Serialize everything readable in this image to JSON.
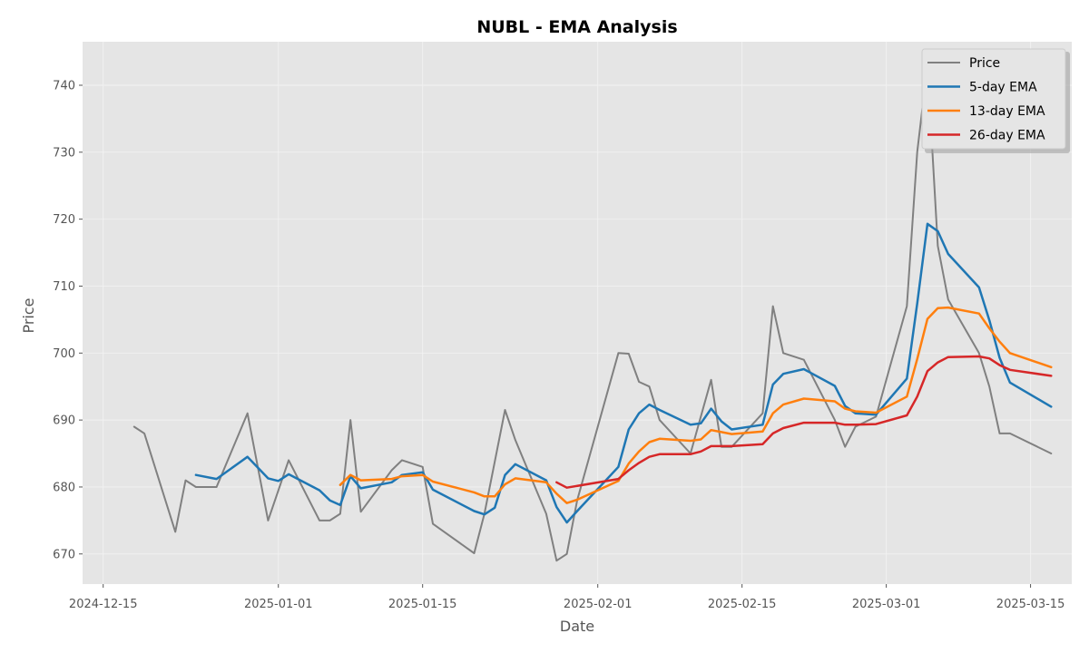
{
  "chart_data": {
    "type": "line",
    "title": "NUBL - EMA Analysis",
    "xlabel": "Date",
    "ylabel": "Price",
    "xlim": [
      "2024-12-13",
      "2025-03-19"
    ],
    "ylim": [
      665.5,
      746.5
    ],
    "x_ticks": [
      "2024-12-15",
      "2025-01-01",
      "2025-01-15",
      "2025-02-01",
      "2025-02-15",
      "2025-03-01",
      "2025-03-15"
    ],
    "y_ticks": [
      670,
      680,
      690,
      700,
      710,
      720,
      730,
      740
    ],
    "grid": true,
    "legend_position": "top-right",
    "series": [
      {
        "name": "Price",
        "color": "#808080",
        "points": [
          [
            "2024-12-18",
            689
          ],
          [
            "2024-12-19",
            688
          ],
          [
            "2024-12-22",
            673.3
          ],
          [
            "2024-12-23",
            681
          ],
          [
            "2024-12-24",
            680
          ],
          [
            "2024-12-26",
            680
          ],
          [
            "2024-12-29",
            691
          ],
          [
            "2024-12-31",
            675
          ],
          [
            "2025-01-02",
            684
          ],
          [
            "2025-01-05",
            675
          ],
          [
            "2025-01-06",
            675
          ],
          [
            "2025-01-07",
            676
          ],
          [
            "2025-01-08",
            690
          ],
          [
            "2025-01-09",
            676.3
          ],
          [
            "2025-01-12",
            682.5
          ],
          [
            "2025-01-13",
            684
          ],
          [
            "2025-01-15",
            683
          ],
          [
            "2025-01-16",
            674.5
          ],
          [
            "2025-01-20",
            670.1
          ],
          [
            "2025-01-21",
            676
          ],
          [
            "2025-01-23",
            691.5
          ],
          [
            "2025-01-24",
            687
          ],
          [
            "2025-01-27",
            676
          ],
          [
            "2025-01-28",
            669
          ],
          [
            "2025-01-29",
            670
          ],
          [
            "2025-01-30",
            678
          ],
          [
            "2025-02-03",
            700
          ],
          [
            "2025-02-04",
            699.9
          ],
          [
            "2025-02-05",
            695.7
          ],
          [
            "2025-02-06",
            695
          ],
          [
            "2025-02-07",
            690
          ],
          [
            "2025-02-10",
            685
          ],
          [
            "2025-02-12",
            696
          ],
          [
            "2025-02-13",
            686
          ],
          [
            "2025-02-14",
            686
          ],
          [
            "2025-02-17",
            691
          ],
          [
            "2025-02-18",
            707
          ],
          [
            "2025-02-19",
            700
          ],
          [
            "2025-02-21",
            699
          ],
          [
            "2025-02-24",
            690
          ],
          [
            "2025-02-25",
            686
          ],
          [
            "2025-02-26",
            689
          ],
          [
            "2025-02-28",
            690.5
          ],
          [
            "2025-03-03",
            707
          ],
          [
            "2025-03-04",
            730
          ],
          [
            "2025-03-05",
            743
          ],
          [
            "2025-03-06",
            716
          ],
          [
            "2025-03-07",
            708
          ],
          [
            "2025-03-10",
            700
          ],
          [
            "2025-03-11",
            695
          ],
          [
            "2025-03-12",
            688
          ],
          [
            "2025-03-13",
            688
          ],
          [
            "2025-03-17",
            685
          ]
        ]
      },
      {
        "name": "5-day EMA",
        "color": "#1f77b4",
        "points": [
          [
            "2024-12-24",
            681.8
          ],
          [
            "2024-12-26",
            681.2
          ],
          [
            "2024-12-29",
            684.5
          ],
          [
            "2024-12-31",
            681.3
          ],
          [
            "2025-01-01",
            680.9
          ],
          [
            "2025-01-02",
            681.9
          ],
          [
            "2025-01-05",
            679.5
          ],
          [
            "2025-01-06",
            678
          ],
          [
            "2025-01-07",
            677.3
          ],
          [
            "2025-01-08",
            681.6
          ],
          [
            "2025-01-09",
            679.8
          ],
          [
            "2025-01-12",
            680.7
          ],
          [
            "2025-01-13",
            681.8
          ],
          [
            "2025-01-15",
            682.2
          ],
          [
            "2025-01-16",
            679.6
          ],
          [
            "2025-01-20",
            676.4
          ],
          [
            "2025-01-21",
            675.9
          ],
          [
            "2025-01-22",
            676.9
          ],
          [
            "2025-01-23",
            681.8
          ],
          [
            "2025-01-24",
            683.4
          ],
          [
            "2025-01-27",
            681
          ],
          [
            "2025-01-28",
            677
          ],
          [
            "2025-01-29",
            674.7
          ],
          [
            "2025-01-30",
            676.4
          ],
          [
            "2025-02-03",
            683
          ],
          [
            "2025-02-04",
            688.6
          ],
          [
            "2025-02-05",
            691
          ],
          [
            "2025-02-06",
            692.3
          ],
          [
            "2025-02-07",
            691.5
          ],
          [
            "2025-02-10",
            689.3
          ],
          [
            "2025-02-11",
            689.5
          ],
          [
            "2025-02-12",
            691.7
          ],
          [
            "2025-02-13",
            689.8
          ],
          [
            "2025-02-14",
            688.6
          ],
          [
            "2025-02-17",
            689.3
          ],
          [
            "2025-02-18",
            695.3
          ],
          [
            "2025-02-19",
            696.9
          ],
          [
            "2025-02-21",
            697.6
          ],
          [
            "2025-02-24",
            695.1
          ],
          [
            "2025-02-25",
            692.1
          ],
          [
            "2025-02-26",
            691
          ],
          [
            "2025-02-28",
            690.8
          ],
          [
            "2025-03-03",
            696.2
          ],
          [
            "2025-03-04",
            707.4
          ],
          [
            "2025-03-05",
            719.3
          ],
          [
            "2025-03-06",
            718.2
          ],
          [
            "2025-03-07",
            714.8
          ],
          [
            "2025-03-10",
            709.8
          ],
          [
            "2025-03-11",
            704.9
          ],
          [
            "2025-03-12",
            699.3
          ],
          [
            "2025-03-13",
            695.6
          ],
          [
            "2025-03-17",
            692
          ]
        ]
      },
      {
        "name": "13-day EMA",
        "color": "#ff7f0e",
        "points": [
          [
            "2025-01-07",
            680.3
          ],
          [
            "2025-01-08",
            681.8
          ],
          [
            "2025-01-09",
            681
          ],
          [
            "2025-01-12",
            681.2
          ],
          [
            "2025-01-13",
            681.6
          ],
          [
            "2025-01-15",
            681.8
          ],
          [
            "2025-01-16",
            680.8
          ],
          [
            "2025-01-20",
            679.2
          ],
          [
            "2025-01-21",
            678.6
          ],
          [
            "2025-01-22",
            678.6
          ],
          [
            "2025-01-23",
            680.4
          ],
          [
            "2025-01-24",
            681.3
          ],
          [
            "2025-01-27",
            680.7
          ],
          [
            "2025-01-28",
            679
          ],
          [
            "2025-01-29",
            677.6
          ],
          [
            "2025-01-30",
            678.1
          ],
          [
            "2025-02-03",
            680.9
          ],
          [
            "2025-02-04",
            683.5
          ],
          [
            "2025-02-05",
            685.3
          ],
          [
            "2025-02-06",
            686.7
          ],
          [
            "2025-02-07",
            687.2
          ],
          [
            "2025-02-10",
            686.9
          ],
          [
            "2025-02-11",
            687.1
          ],
          [
            "2025-02-12",
            688.5
          ],
          [
            "2025-02-13",
            688.2
          ],
          [
            "2025-02-14",
            687.9
          ],
          [
            "2025-02-17",
            688.3
          ],
          [
            "2025-02-18",
            691
          ],
          [
            "2025-02-19",
            692.3
          ],
          [
            "2025-02-21",
            693.2
          ],
          [
            "2025-02-24",
            692.8
          ],
          [
            "2025-02-25",
            691.7
          ],
          [
            "2025-02-26",
            691.3
          ],
          [
            "2025-02-28",
            691.1
          ],
          [
            "2025-03-03",
            693.5
          ],
          [
            "2025-03-04",
            699.1
          ],
          [
            "2025-03-05",
            705.1
          ],
          [
            "2025-03-06",
            706.7
          ],
          [
            "2025-03-07",
            706.8
          ],
          [
            "2025-03-10",
            705.9
          ],
          [
            "2025-03-11",
            703.7
          ],
          [
            "2025-03-12",
            701.7
          ],
          [
            "2025-03-13",
            700
          ],
          [
            "2025-03-17",
            697.9
          ]
        ]
      },
      {
        "name": "26-day EMA",
        "color": "#d62728",
        "points": [
          [
            "2025-01-28",
            680.7
          ],
          [
            "2025-01-29",
            679.9
          ],
          [
            "2025-02-03",
            681.2
          ],
          [
            "2025-02-04",
            682.5
          ],
          [
            "2025-02-05",
            683.6
          ],
          [
            "2025-02-06",
            684.5
          ],
          [
            "2025-02-07",
            684.9
          ],
          [
            "2025-02-10",
            684.9
          ],
          [
            "2025-02-11",
            685.3
          ],
          [
            "2025-02-12",
            686.1
          ],
          [
            "2025-02-13",
            686.1
          ],
          [
            "2025-02-14",
            686.1
          ],
          [
            "2025-02-17",
            686.4
          ],
          [
            "2025-02-18",
            688
          ],
          [
            "2025-02-19",
            688.8
          ],
          [
            "2025-02-21",
            689.6
          ],
          [
            "2025-02-24",
            689.6
          ],
          [
            "2025-02-25",
            689.3
          ],
          [
            "2025-02-26",
            689.3
          ],
          [
            "2025-02-28",
            689.4
          ],
          [
            "2025-03-03",
            690.7
          ],
          [
            "2025-03-04",
            693.5
          ],
          [
            "2025-03-05",
            697.3
          ],
          [
            "2025-03-06",
            698.6
          ],
          [
            "2025-03-07",
            699.4
          ],
          [
            "2025-03-10",
            699.5
          ],
          [
            "2025-03-11",
            699.2
          ],
          [
            "2025-03-12",
            698.2
          ],
          [
            "2025-03-13",
            697.5
          ],
          [
            "2025-03-17",
            696.6
          ]
        ]
      }
    ]
  }
}
